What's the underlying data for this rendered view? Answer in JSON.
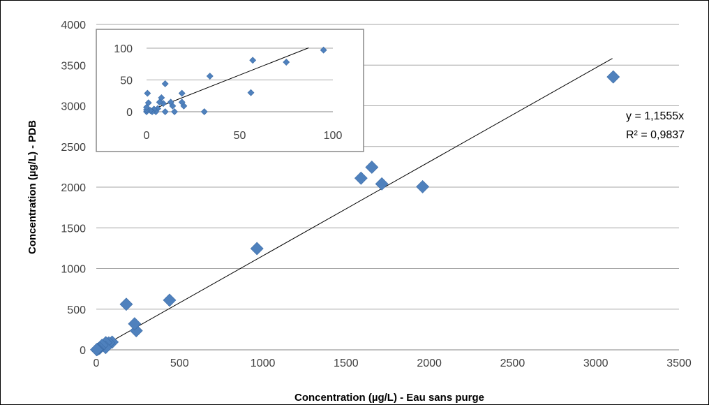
{
  "chart_data": [
    {
      "type": "scatter",
      "title": "",
      "xlabel": "Concentration (µg/L) - Eau sans purge",
      "ylabel": "Concentration (µg/L) - PDB",
      "xlim": [
        0,
        3500
      ],
      "ylim": [
        0,
        4000
      ],
      "x_ticks": [
        "0",
        "500",
        "1000",
        "1500",
        "2000",
        "2500",
        "3000",
        "3500"
      ],
      "y_ticks": [
        "0",
        "500",
        "1000",
        "1500",
        "2000",
        "2500",
        "3000",
        "3500",
        "4000"
      ],
      "grid": "horizontal",
      "marker_color": "#4F81BD",
      "trendline": {
        "slope": 1.1555,
        "x_range": [
          10,
          3100
        ],
        "color": "#000000"
      },
      "equation": "y = 1,1555x",
      "r_squared": "R² = 0,9837",
      "points": [
        {
          "x": 3105,
          "y": 3355
        },
        {
          "x": 1960,
          "y": 2005
        },
        {
          "x": 1715,
          "y": 2040
        },
        {
          "x": 1655,
          "y": 2245
        },
        {
          "x": 1590,
          "y": 2110
        },
        {
          "x": 965,
          "y": 1245
        },
        {
          "x": 440,
          "y": 610
        },
        {
          "x": 240,
          "y": 235
        },
        {
          "x": 230,
          "y": 320
        },
        {
          "x": 180,
          "y": 560
        },
        {
          "x": 95,
          "y": 95
        },
        {
          "x": 75,
          "y": 85
        },
        {
          "x": 57,
          "y": 88
        },
        {
          "x": 56,
          "y": 28
        },
        {
          "x": 34,
          "y": 55
        },
        {
          "x": 20,
          "y": 20
        },
        {
          "x": 10,
          "y": 10
        },
        {
          "x": 5,
          "y": 5
        },
        {
          "x": 2,
          "y": 2
        }
      ]
    },
    {
      "type": "scatter",
      "title": "",
      "xlabel": "",
      "ylabel": "",
      "xlim": [
        0,
        100
      ],
      "ylim": [
        0,
        100
      ],
      "x_ticks": [
        "0",
        "50",
        "100"
      ],
      "y_ticks": [
        "0",
        "50",
        "100"
      ],
      "grid": "horizontal",
      "marker_color": "#4F81BD",
      "trendline": {
        "slope": 1.1555,
        "x_range": [
          0,
          87
        ],
        "color": "#000000"
      },
      "points": [
        {
          "x": 95,
          "y": 97
        },
        {
          "x": 75,
          "y": 78
        },
        {
          "x": 57,
          "y": 81
        },
        {
          "x": 56,
          "y": 30
        },
        {
          "x": 34,
          "y": 56
        },
        {
          "x": 31,
          "y": 0
        },
        {
          "x": 20,
          "y": 9
        },
        {
          "x": 19,
          "y": 15
        },
        {
          "x": 19,
          "y": 29
        },
        {
          "x": 15,
          "y": 0
        },
        {
          "x": 14,
          "y": 9
        },
        {
          "x": 13,
          "y": 15
        },
        {
          "x": 10,
          "y": 44
        },
        {
          "x": 10,
          "y": 0
        },
        {
          "x": 9,
          "y": 13
        },
        {
          "x": 8,
          "y": 22
        },
        {
          "x": 7,
          "y": 15
        },
        {
          "x": 6,
          "y": 5
        },
        {
          "x": 5,
          "y": 0
        },
        {
          "x": 4,
          "y": 4
        },
        {
          "x": 3,
          "y": 0
        },
        {
          "x": 2,
          "y": 2
        },
        {
          "x": 1,
          "y": 14
        },
        {
          "x": 0.5,
          "y": 29
        },
        {
          "x": 0,
          "y": 0
        },
        {
          "x": 0,
          "y": 3
        },
        {
          "x": 0,
          "y": 7
        }
      ]
    }
  ]
}
